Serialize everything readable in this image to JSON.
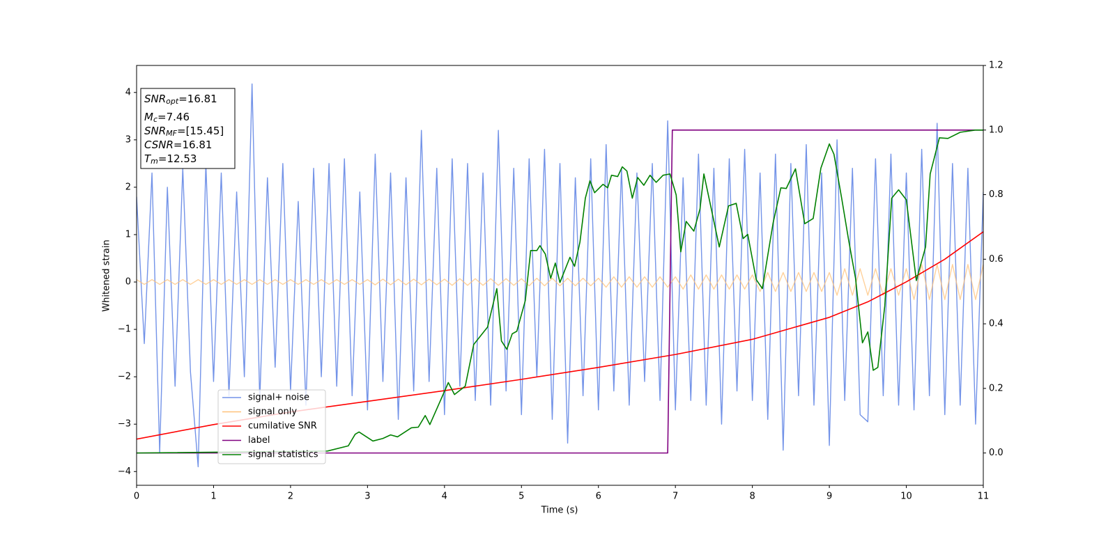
{
  "chart_data": {
    "type": "line",
    "xlabel": "Time (s)",
    "ylabel": "Whitened strain",
    "xlim": [
      0,
      11
    ],
    "xticks": [
      0,
      1,
      2,
      3,
      4,
      5,
      6,
      7,
      8,
      9,
      10,
      11
    ],
    "ylim": [
      -4.29,
      4.57
    ],
    "yticks": [
      {
        "value": -4,
        "label": "−4"
      },
      {
        "value": -3,
        "label": "−3"
      },
      {
        "value": -2,
        "label": "−2"
      },
      {
        "value": -1,
        "label": "−1"
      },
      0,
      1,
      2,
      3,
      4
    ],
    "y2lim": [
      -0.1,
      1.2
    ],
    "y2ticks": [
      {
        "value": 0,
        "label": "0.0"
      },
      {
        "value": 0.2,
        "label": "0.2"
      },
      {
        "value": 0.4,
        "label": "0.4"
      },
      {
        "value": 0.6,
        "label": "0.6"
      },
      {
        "value": 0.8,
        "label": "0.8"
      },
      {
        "value": 1,
        "label": "1.0"
      },
      {
        "value": 1.2,
        "label": "1.2"
      }
    ],
    "legend": "lower left",
    "x": [
      0,
      0.1,
      0.2,
      0.3,
      0.4,
      0.5,
      0.6,
      0.7,
      0.8,
      0.9,
      1,
      1.1,
      1.2,
      1.3,
      1.4,
      1.5,
      1.6,
      1.7,
      1.8,
      1.9,
      2,
      2.1,
      2.2,
      2.3,
      2.4,
      2.5,
      2.6,
      2.7,
      2.8,
      2.9,
      3,
      3.1,
      3.2,
      3.3,
      3.4,
      3.5,
      3.6,
      3.7,
      3.8,
      3.9,
      4,
      4.1,
      4.2,
      4.3,
      4.4,
      4.5,
      4.6,
      4.7,
      4.8,
      4.9,
      5,
      5.1,
      5.2,
      5.3,
      5.4,
      5.5,
      5.6,
      5.7,
      5.8,
      5.9,
      6,
      6.1,
      6.2,
      6.3,
      6.4,
      6.5,
      6.6,
      6.7,
      6.8,
      6.9,
      7,
      7.1,
      7.2,
      7.3,
      7.4,
      7.5,
      7.6,
      7.7,
      7.8,
      7.9,
      8,
      8.1,
      8.2,
      8.3,
      8.4,
      8.5,
      8.6,
      8.7,
      8.8,
      8.9,
      9,
      9.1,
      9.2,
      9.3,
      9.4,
      9.5,
      9.6,
      9.7,
      9.8,
      9.9,
      10,
      10.1,
      10.2,
      10.3,
      10.4,
      10.5,
      10.6,
      10.7,
      10.8,
      10.9,
      11
    ],
    "series": [
      {
        "name": "signal+ noise",
        "color": "#7393e8",
        "values": [
          1.8,
          -1.3,
          2.3,
          -3.6,
          2.0,
          -2.2,
          2.4,
          -1.9,
          -3.9,
          2.5,
          -2.1,
          2.3,
          -2.4,
          1.9,
          -2.0,
          4.18,
          -2.5,
          2.2,
          -1.8,
          2.5,
          -2.3,
          1.7,
          -2.6,
          2.4,
          -2.0,
          2.5,
          -2.2,
          2.6,
          -2.4,
          1.9,
          -2.7,
          2.7,
          -2.1,
          2.3,
          -2.9,
          2.2,
          -2.3,
          3.2,
          -2.1,
          2.4,
          -2.8,
          2.6,
          -2.2,
          2.5,
          -2.5,
          2.3,
          -2.6,
          3.2,
          -2.3,
          2.4,
          -2.8,
          2.6,
          -2.0,
          2.8,
          -2.9,
          2.5,
          -3.4,
          2.2,
          -2.4,
          2.6,
          -2.7,
          2.9,
          -2.3,
          2.4,
          -2.6,
          2.3,
          -2.1,
          2.5,
          -2.5,
          3.4,
          -2.7,
          2.2,
          -2.5,
          2.7,
          -2.6,
          2.4,
          -3.0,
          2.6,
          -2.3,
          2.8,
          -2.5,
          2.3,
          -2.9,
          2.7,
          -3.55,
          2.5,
          -2.4,
          2.9,
          -2.6,
          2.3,
          -3.45,
          3.0,
          -2.5,
          2.4,
          -2.8,
          -2.95,
          2.6,
          -2.4,
          2.7,
          -2.6,
          2.3,
          -2.7,
          2.8,
          -2.4,
          3.35,
          -2.8,
          2.5,
          -2.6,
          2.4,
          -3.0,
          1.9
        ]
      },
      {
        "name": "signal only",
        "color": "#ffc27a",
        "values": [
          0.05,
          -0.05,
          0.05,
          -0.05,
          0.05,
          -0.05,
          0.05,
          -0.05,
          0.05,
          -0.05,
          0.05,
          -0.05,
          0.05,
          -0.05,
          0.05,
          -0.05,
          0.05,
          -0.05,
          0.05,
          -0.05,
          0.05,
          -0.05,
          0.05,
          -0.05,
          0.05,
          -0.05,
          0.05,
          -0.05,
          0.05,
          -0.05,
          0.05,
          -0.06,
          0.06,
          -0.06,
          0.06,
          -0.06,
          0.06,
          -0.06,
          0.06,
          -0.06,
          0.06,
          -0.07,
          0.07,
          -0.07,
          0.07,
          -0.07,
          0.07,
          -0.07,
          0.07,
          -0.07,
          0.07,
          -0.08,
          0.08,
          -0.08,
          0.08,
          -0.08,
          0.08,
          -0.08,
          0.08,
          -0.08,
          0.08,
          -0.11,
          0.11,
          -0.11,
          0.11,
          -0.11,
          0.11,
          -0.11,
          0.11,
          -0.11,
          0.11,
          -0.15,
          0.15,
          -0.15,
          0.15,
          -0.15,
          0.15,
          -0.15,
          0.15,
          -0.15,
          0.15,
          -0.2,
          0.2,
          -0.2,
          0.2,
          -0.2,
          0.2,
          -0.2,
          0.2,
          -0.2,
          0.2,
          -0.28,
          0.28,
          -0.28,
          0.28,
          -0.28,
          0.28,
          -0.28,
          0.28,
          -0.28,
          0.28,
          -0.37,
          0.37,
          -0.37,
          0.37,
          -0.37,
          0.37,
          -0.37,
          0.37,
          -0.37,
          0.37
        ]
      },
      {
        "name": "cumilative SNR",
        "color": "#ff0000",
        "axis": "y2",
        "x": [
          0,
          1,
          2,
          3,
          4,
          5,
          6,
          7,
          8,
          9,
          9.5,
          10,
          10.5,
          11
        ],
        "values": [
          0.043,
          0.088,
          0.127,
          0.16,
          0.193,
          0.228,
          0.265,
          0.305,
          0.352,
          0.42,
          0.468,
          0.53,
          0.6,
          0.685
        ]
      },
      {
        "name": "label",
        "color": "#800080",
        "axis": "y2",
        "x": [
          0,
          6.9,
          6.96,
          11
        ],
        "values": [
          0,
          0,
          1,
          1
        ]
      },
      {
        "name": "signal statistics",
        "color": "#008000",
        "axis": "y2",
        "x": [
          0,
          2.48,
          2.75,
          2.84,
          2.89,
          3.07,
          3.2,
          3.3,
          3.39,
          3.57,
          3.66,
          3.75,
          3.81,
          3.93,
          4.05,
          4.13,
          4.27,
          4.38,
          4.56,
          4.68,
          4.74,
          4.81,
          4.88,
          4.94,
          5.05,
          5.12,
          5.2,
          5.24,
          5.31,
          5.38,
          5.44,
          5.5,
          5.63,
          5.69,
          5.76,
          5.83,
          5.89,
          5.95,
          6.06,
          6.12,
          6.17,
          6.25,
          6.31,
          6.37,
          6.44,
          6.51,
          6.59,
          6.67,
          6.75,
          6.84,
          6.93,
          7.01,
          7.07,
          7.14,
          7.24,
          7.32,
          7.37,
          7.46,
          7.57,
          7.69,
          7.79,
          7.88,
          7.94,
          8.05,
          8.13,
          8.2,
          8.27,
          8.37,
          8.44,
          8.56,
          8.68,
          8.79,
          8.89,
          9,
          9.06,
          9.16,
          9.25,
          9.34,
          9.43,
          9.5,
          9.57,
          9.63,
          9.72,
          9.81,
          9.9,
          10,
          10.13,
          10.25,
          10.31,
          10.43,
          10.54,
          10.7,
          10.9,
          11
        ],
        "values": [
          0,
          0.006,
          0.022,
          0.058,
          0.065,
          0.037,
          0.045,
          0.056,
          0.05,
          0.078,
          0.08,
          0.116,
          0.088,
          0.153,
          0.218,
          0.181,
          0.207,
          0.336,
          0.39,
          0.509,
          0.347,
          0.321,
          0.369,
          0.377,
          0.472,
          0.627,
          0.627,
          0.642,
          0.616,
          0.541,
          0.588,
          0.528,
          0.606,
          0.578,
          0.653,
          0.789,
          0.843,
          0.806,
          0.832,
          0.821,
          0.86,
          0.856,
          0.886,
          0.873,
          0.789,
          0.853,
          0.829,
          0.86,
          0.838,
          0.86,
          0.864,
          0.799,
          0.623,
          0.717,
          0.687,
          0.756,
          0.864,
          0.763,
          0.638,
          0.765,
          0.773,
          0.664,
          0.677,
          0.537,
          0.509,
          0.612,
          0.713,
          0.821,
          0.819,
          0.88,
          0.71,
          0.726,
          0.882,
          0.957,
          0.925,
          0.789,
          0.66,
          0.541,
          0.341,
          0.375,
          0.256,
          0.265,
          0.455,
          0.789,
          0.815,
          0.784,
          0.534,
          0.638,
          0.864,
          0.976,
          0.974,
          0.993,
          1,
          1
        ]
      }
    ],
    "annotations": [
      {
        "name": "SNR",
        "sub": "opt",
        "text": "=16.81"
      },
      {
        "name": "M",
        "sub": "c",
        "text": "=7.46"
      },
      {
        "name": "SNR",
        "sub": "MF",
        "text": "=[15.45]"
      },
      {
        "name": "CSNR",
        "text": "=16.81"
      },
      {
        "name": "T",
        "sub": "m",
        "text": "=12.53"
      }
    ]
  }
}
